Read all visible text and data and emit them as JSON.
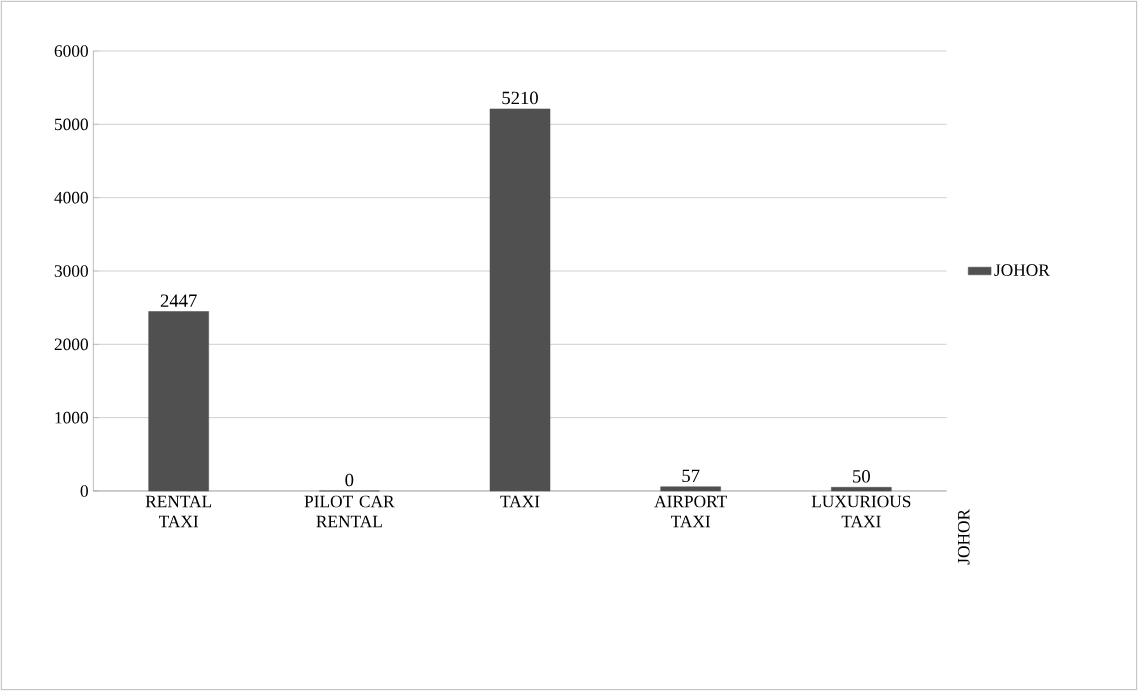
{
  "chart_data": {
    "type": "bar",
    "categories": [
      "RENTAL TAXI",
      "PILOT CAR RENTAL",
      "TAXI",
      "AIRPORT TAXI",
      "LUXURIOUS TAXI"
    ],
    "series": [
      {
        "name": "JOHOR",
        "color": "#505050",
        "values": [
          2447,
          0,
          5210,
          57,
          50
        ]
      }
    ],
    "ylim": [
      0,
      6000
    ],
    "yticks": [
      0,
      1000,
      2000,
      3000,
      4000,
      5000,
      6000
    ],
    "grid": "y",
    "legend": "right",
    "data_labels": true,
    "annotations": [
      "JOHOR"
    ]
  }
}
